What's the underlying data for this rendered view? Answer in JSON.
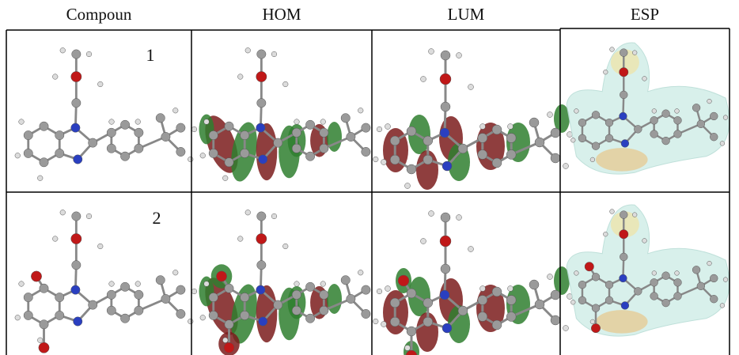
{
  "table": {
    "header": [
      "Compoun",
      "HOM",
      "LUM",
      "ESP"
    ],
    "rows": [
      [
        "1"
      ],
      [
        "2"
      ]
    ]
  }
}
